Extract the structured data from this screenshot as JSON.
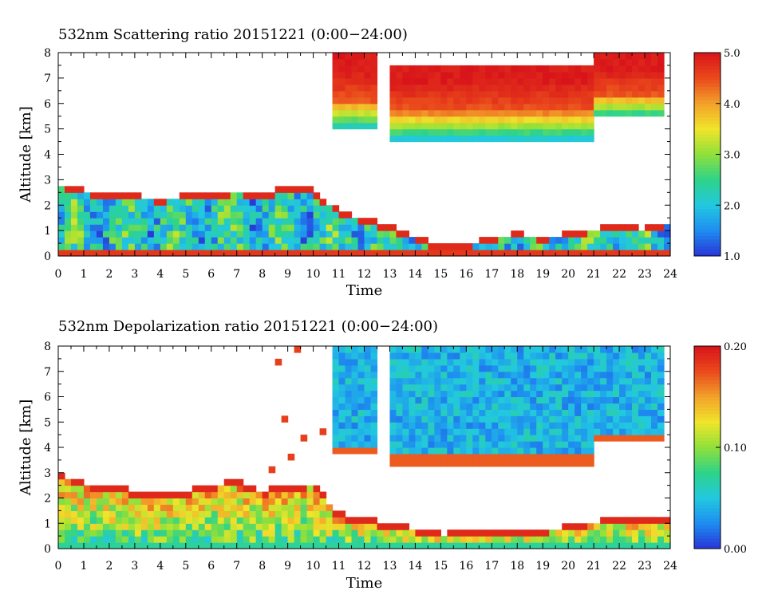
{
  "chart_data": [
    {
      "type": "heatmap",
      "title": "532nm Scattering ratio  20151221 (0:00−24:00)",
      "xlabel": "Time",
      "ylabel": "Altitude [km]",
      "xlim": [
        0,
        24
      ],
      "ylim": [
        0,
        8
      ],
      "x_ticks": [
        "0",
        "1",
        "2",
        "3",
        "4",
        "5",
        "6",
        "7",
        "8",
        "9",
        "10",
        "11",
        "12",
        "13",
        "14",
        "15",
        "16",
        "17",
        "18",
        "19",
        "20",
        "21",
        "22",
        "23",
        "24"
      ],
      "y_ticks": [
        "0",
        "1",
        "2",
        "3",
        "4",
        "5",
        "6",
        "7",
        "8"
      ],
      "colorbar": {
        "range": [
          1.0,
          5.0
        ],
        "tick_labels": [
          "1.0",
          "2.0",
          "3.0",
          "4.0",
          "5.0"
        ],
        "tick_values": [
          1.0,
          2.0,
          3.0,
          4.0,
          5.0
        ],
        "colormap": [
          "#2a34d8",
          "#1e8cf0",
          "#22c8e0",
          "#2ed38a",
          "#8ee03a",
          "#f0e52a",
          "#f2a12a",
          "#ea4a1c",
          "#d8141a"
        ]
      },
      "boundary_layer_top_km": [
        [
          0,
          2.9
        ],
        [
          1,
          2.6
        ],
        [
          2,
          2.5
        ],
        [
          3,
          2.4
        ],
        [
          4,
          2.3
        ],
        [
          5,
          2.4
        ],
        [
          6,
          2.5
        ],
        [
          7,
          2.6
        ],
        [
          8,
          2.4
        ],
        [
          9,
          2.8
        ],
        [
          10,
          2.6
        ],
        [
          11,
          1.8
        ],
        [
          12,
          1.5
        ],
        [
          13,
          1.2
        ],
        [
          14,
          0.8
        ],
        [
          15,
          0.4
        ],
        [
          16,
          0.5
        ],
        [
          17,
          0.8
        ],
        [
          18,
          0.9
        ],
        [
          19,
          0.8
        ],
        [
          20,
          0.9
        ],
        [
          21,
          1.1
        ],
        [
          22,
          1.2
        ],
        [
          23,
          1.1
        ],
        [
          24,
          1.4
        ]
      ],
      "cloud_bands": [
        {
          "t_start": 10.8,
          "t_end": 12.6,
          "base_km": 5.0,
          "top_km": 8.0
        },
        {
          "t_start": 13.1,
          "t_end": 20.9,
          "base_km": 4.6,
          "top_km": 7.6
        },
        {
          "t_start": 20.9,
          "t_end": 23.7,
          "base_km": 5.4,
          "top_km": 8.0
        }
      ]
    },
    {
      "type": "heatmap",
      "title": "532nm Depolarization ratio  20151221 (0:00−24:00)",
      "xlabel": "Time",
      "ylabel": "Altitude [km]",
      "xlim": [
        0,
        24
      ],
      "ylim": [
        0,
        8
      ],
      "x_ticks": [
        "0",
        "1",
        "2",
        "3",
        "4",
        "5",
        "6",
        "7",
        "8",
        "9",
        "10",
        "11",
        "12",
        "13",
        "14",
        "15",
        "16",
        "17",
        "18",
        "19",
        "20",
        "21",
        "22",
        "23",
        "24"
      ],
      "y_ticks": [
        "0",
        "1",
        "2",
        "3",
        "4",
        "5",
        "6",
        "7",
        "8"
      ],
      "colorbar": {
        "range": [
          0.0,
          0.2
        ],
        "tick_labels": [
          "0.00",
          "0.10",
          "0.20"
        ],
        "tick_values": [
          0.0,
          0.1,
          0.2
        ],
        "colormap": [
          "#2a34d8",
          "#1e8cf0",
          "#22c8e0",
          "#2ed38a",
          "#8ee03a",
          "#f0e52a",
          "#f2a12a",
          "#ea4a1c",
          "#d8141a"
        ]
      },
      "boundary_layer_top_km": [
        [
          0,
          3.0
        ],
        [
          1,
          2.6
        ],
        [
          2,
          2.5
        ],
        [
          3,
          2.3
        ],
        [
          4,
          2.1
        ],
        [
          5,
          2.3
        ],
        [
          6,
          2.5
        ],
        [
          7,
          2.7
        ],
        [
          8,
          2.3
        ],
        [
          9,
          2.5
        ],
        [
          10,
          2.6
        ],
        [
          11,
          1.4
        ],
        [
          12,
          1.2
        ],
        [
          13,
          1.0
        ],
        [
          14,
          0.8
        ],
        [
          15,
          0.6
        ],
        [
          16,
          0.7
        ],
        [
          17,
          0.8
        ],
        [
          18,
          0.8
        ],
        [
          19,
          0.8
        ],
        [
          20,
          0.9
        ],
        [
          21,
          1.1
        ],
        [
          22,
          1.2
        ],
        [
          23,
          1.2
        ],
        [
          24,
          1.3
        ]
      ],
      "cloud_bands": [
        {
          "t_start": 10.8,
          "t_end": 12.6,
          "base_km": 3.8,
          "top_km": 8.0
        },
        {
          "t_start": 13.1,
          "t_end": 20.9,
          "base_km": 3.3,
          "top_km": 8.0
        },
        {
          "t_start": 20.9,
          "t_end": 23.7,
          "base_km": 4.2,
          "top_km": 8.0
        }
      ]
    }
  ]
}
